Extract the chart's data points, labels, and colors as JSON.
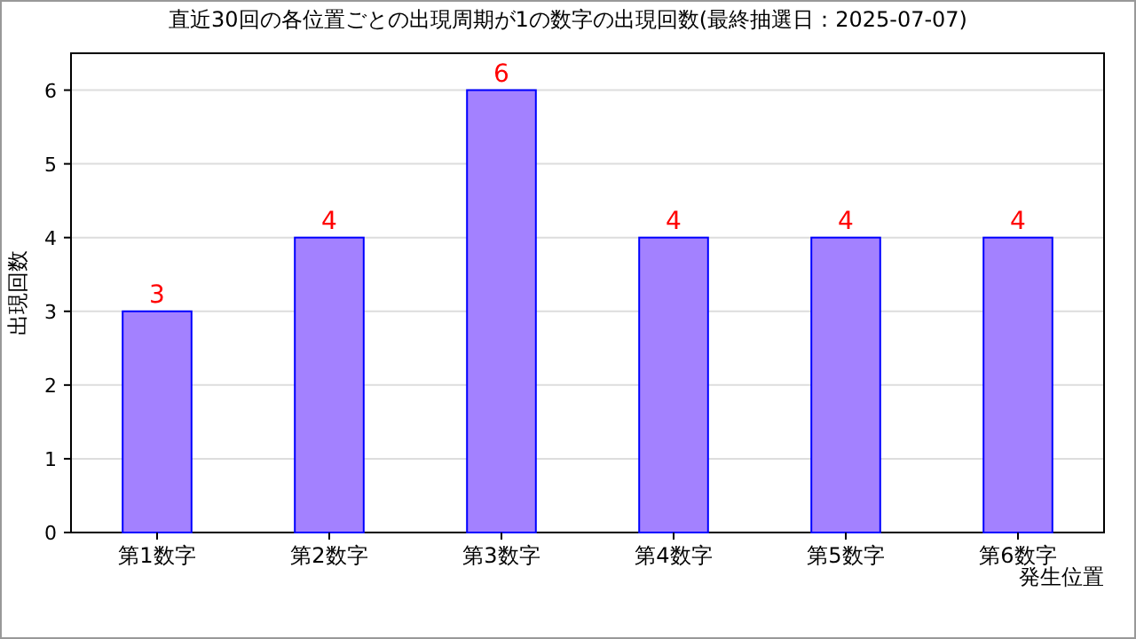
{
  "chart_data": {
    "type": "bar",
    "title": "直近30回の各位置ごとの出現周期が1の数字の出現回数(最終抽選日：2025-07-07)",
    "xlabel": "発生位置",
    "ylabel": "出現回数",
    "categories": [
      "第1数字",
      "第2数字",
      "第3数字",
      "第4数字",
      "第5数字",
      "第6数字"
    ],
    "values": [
      3,
      4,
      6,
      4,
      4,
      4
    ],
    "color": "#a381ff",
    "ylim": [
      0,
      6.5
    ],
    "yticks": [
      0,
      1,
      2,
      3,
      4,
      5,
      6
    ],
    "grid": "y",
    "data_labels": true
  }
}
